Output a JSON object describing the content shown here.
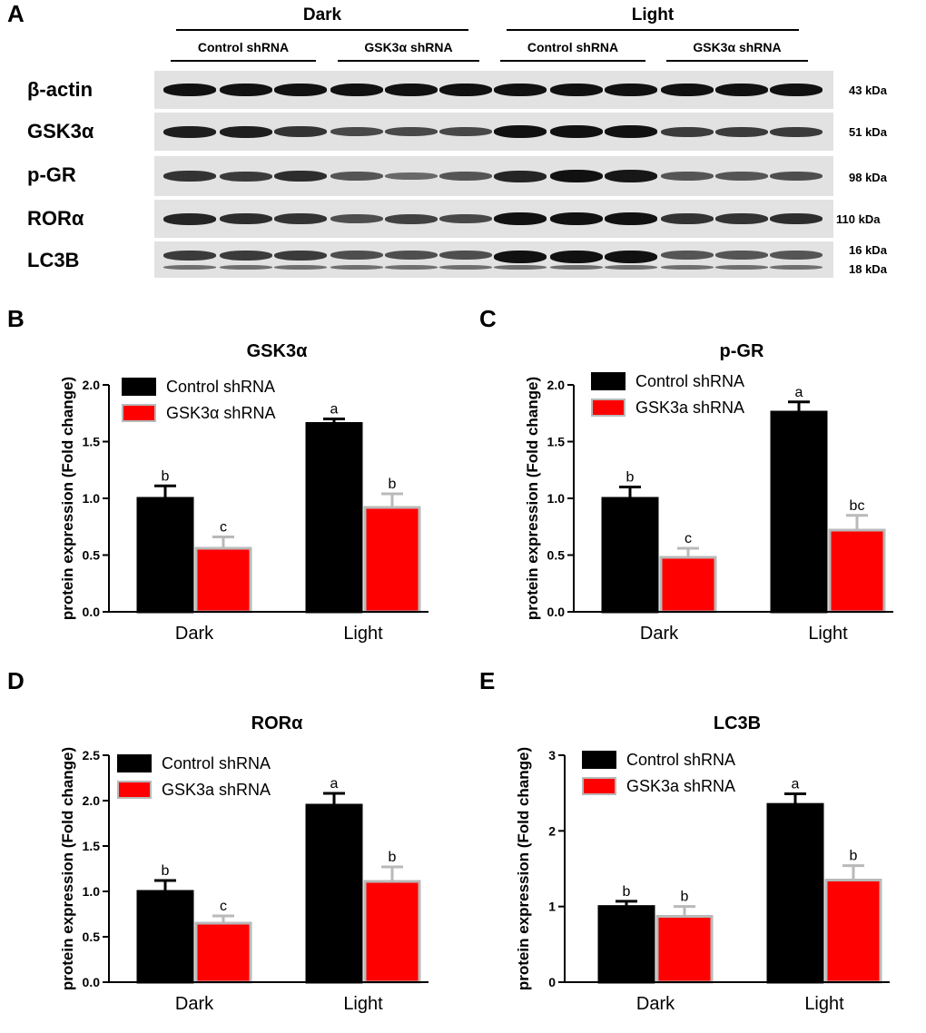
{
  "panels": {
    "a": "A",
    "b": "B",
    "c": "C",
    "d": "D",
    "e": "E"
  },
  "blot": {
    "header_dark": "Dark",
    "header_light": "Light",
    "group_labels": [
      "Control shRNA",
      "GSK3α shRNA",
      "Control shRNA",
      "GSK3α shRNA"
    ],
    "rows": [
      {
        "name": "β-actin",
        "kda": "43 kDa",
        "intensity": [
          1,
          1,
          1,
          1,
          1,
          1,
          1,
          1,
          1,
          1,
          1,
          1
        ]
      },
      {
        "name": "GSK3α",
        "kda": "51 kDa",
        "intensity": [
          0.9,
          0.9,
          0.75,
          0.6,
          0.6,
          0.6,
          1,
          1,
          1,
          0.7,
          0.7,
          0.7
        ]
      },
      {
        "name": "p-GR",
        "kda": "98 kDa",
        "intensity": [
          0.75,
          0.7,
          0.8,
          0.5,
          0.35,
          0.5,
          0.85,
          1,
          0.95,
          0.5,
          0.5,
          0.55
        ]
      },
      {
        "name": "RORα",
        "kda": "110 kDa",
        "intensity": [
          0.85,
          0.8,
          0.75,
          0.55,
          0.65,
          0.6,
          1,
          1,
          1,
          0.75,
          0.75,
          0.8
        ]
      },
      {
        "name": "LC3B",
        "kda": "16 kDa",
        "kda2": "18 kDa",
        "intensity": [
          0.7,
          0.7,
          0.7,
          0.55,
          0.55,
          0.55,
          1,
          1,
          1,
          0.5,
          0.5,
          0.5
        ]
      }
    ]
  },
  "chart_data": [
    {
      "type": "bar",
      "title": "GSK3α",
      "ylabel": "protein expression (Fold change)",
      "xlabel": "",
      "categories": [
        "Dark",
        "Light"
      ],
      "ylim": [
        0,
        2.0
      ],
      "yticks": [
        "0.0",
        "0.5",
        "1.0",
        "1.5",
        "2.0"
      ],
      "series": [
        {
          "name": "Control shRNA",
          "color": "#000000",
          "values": [
            1.0,
            1.66
          ],
          "errors": [
            0.11,
            0.04
          ],
          "letters": [
            "b",
            "a"
          ]
        },
        {
          "name": "GSK3α shRNA",
          "color": "#ff0000",
          "values": [
            0.56,
            0.92
          ],
          "errors": [
            0.1,
            0.12
          ],
          "letters": [
            "c",
            "b"
          ]
        }
      ]
    },
    {
      "type": "bar",
      "title": "p-GR",
      "ylabel": "protein expression (Fold change)",
      "xlabel": "",
      "categories": [
        "Dark",
        "Light"
      ],
      "ylim": [
        0,
        2.0
      ],
      "yticks": [
        "0.0",
        "0.5",
        "1.0",
        "1.5",
        "2.0"
      ],
      "series": [
        {
          "name": "Control shRNA",
          "color": "#000000",
          "values": [
            1.0,
            1.76
          ],
          "errors": [
            0.1,
            0.09
          ],
          "letters": [
            "b",
            "a"
          ]
        },
        {
          "name": "GSK3a shRNA",
          "color": "#ff0000",
          "values": [
            0.48,
            0.72
          ],
          "errors": [
            0.08,
            0.13
          ],
          "letters": [
            "c",
            "bc"
          ]
        }
      ]
    },
    {
      "type": "bar",
      "title": "RORα",
      "ylabel": "protein expression (Fold change)",
      "xlabel": "",
      "categories": [
        "Dark",
        "Light"
      ],
      "ylim": [
        0,
        2.5
      ],
      "yticks": [
        "0.0",
        "0.5",
        "1.0",
        "1.5",
        "2.0",
        "2.5"
      ],
      "series": [
        {
          "name": "Control shRNA",
          "color": "#000000",
          "values": [
            1.0,
            1.95
          ],
          "errors": [
            0.12,
            0.13
          ],
          "letters": [
            "b",
            "a"
          ]
        },
        {
          "name": "GSK3a shRNA",
          "color": "#ff0000",
          "values": [
            0.65,
            1.11
          ],
          "errors": [
            0.08,
            0.16
          ],
          "letters": [
            "c",
            "b"
          ]
        }
      ]
    },
    {
      "type": "bar",
      "title": "LC3B",
      "ylabel": "protein expression (Fold change)",
      "xlabel": "",
      "categories": [
        "Dark",
        "Light"
      ],
      "ylim": [
        0,
        3
      ],
      "yticks": [
        "0",
        "1",
        "2",
        "3"
      ],
      "series": [
        {
          "name": "Control shRNA",
          "color": "#000000",
          "values": [
            1.0,
            2.35
          ],
          "errors": [
            0.07,
            0.14
          ],
          "letters": [
            "b",
            "a"
          ]
        },
        {
          "name": "GSK3a shRNA",
          "color": "#ff0000",
          "values": [
            0.87,
            1.35
          ],
          "errors": [
            0.13,
            0.19
          ],
          "letters": [
            "b",
            "b"
          ]
        }
      ]
    }
  ]
}
